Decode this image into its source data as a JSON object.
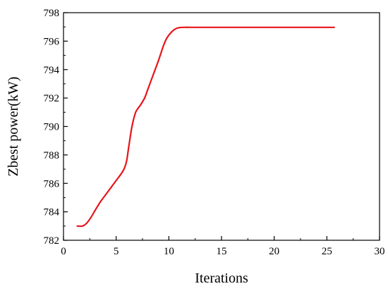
{
  "chart_data": {
    "type": "line",
    "title": "",
    "xlabel": "Iterations",
    "ylabel": "Zbest power(kW)",
    "xlim": [
      0,
      30
    ],
    "ylim": [
      782,
      798
    ],
    "x_ticks": [
      0,
      5,
      10,
      15,
      20,
      25,
      30
    ],
    "y_ticks": [
      782,
      784,
      786,
      788,
      790,
      792,
      794,
      796,
      798
    ],
    "grid": false,
    "legend": "none",
    "series": [
      {
        "color": "#e8141b",
        "x": [
          1.3,
          1.8,
          2.2,
          2.6,
          3.0,
          3.5,
          4.0,
          4.5,
          5.0,
          5.5,
          5.8,
          6.0,
          6.2,
          6.5,
          6.8,
          7.0,
          7.3,
          7.7,
          8.0,
          8.5,
          9.0,
          9.5,
          9.8,
          10.2,
          10.6,
          11.0,
          11.5,
          12.0,
          13.0,
          15.0,
          20.0,
          25.0,
          25.7
        ],
        "y": [
          783.0,
          783.0,
          783.2,
          783.6,
          784.1,
          784.7,
          785.2,
          785.7,
          786.2,
          786.7,
          787.1,
          787.6,
          788.6,
          790.0,
          790.9,
          791.2,
          791.5,
          792.0,
          792.6,
          793.6,
          794.6,
          795.7,
          796.2,
          796.6,
          796.85,
          796.95,
          796.97,
          796.97,
          796.97,
          796.97,
          796.97,
          796.97,
          796.97
        ]
      }
    ]
  }
}
